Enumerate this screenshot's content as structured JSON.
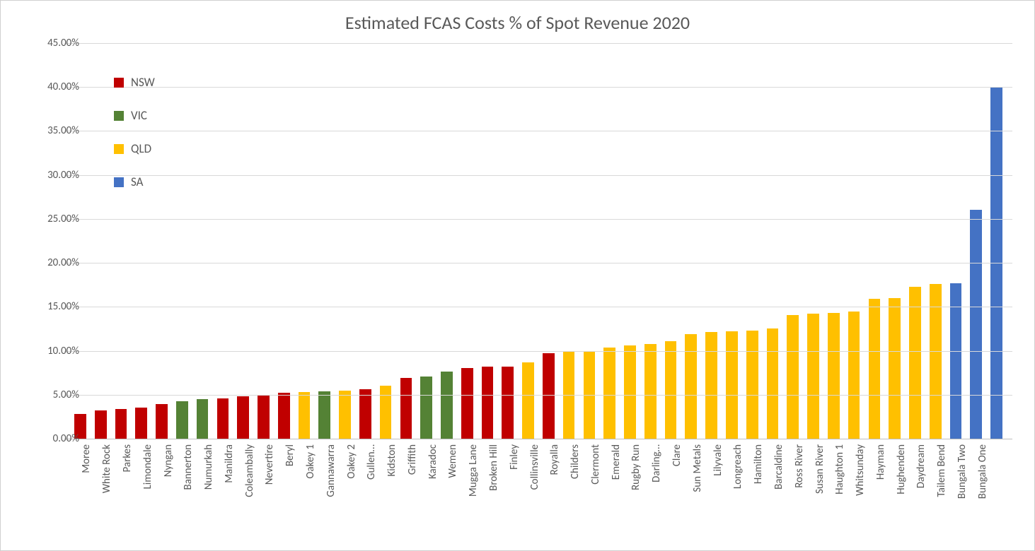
{
  "chart": {
    "type": "bar",
    "title": "Estimated FCAS Costs % of Spot Revenue 2020",
    "title_fontsize": 26,
    "title_color": "#595959",
    "background_color": "#ffffff",
    "border_color": "#d0d0d0",
    "grid_color": "#d9d9d9",
    "axis_line_color": "#bfbfbf",
    "label_fontsize": 15,
    "label_color": "#595959",
    "y_axis": {
      "min": 0,
      "max": 45,
      "tick_step": 5,
      "ticks": [
        "0.00%",
        "5.00%",
        "10.00%",
        "15.00%",
        "20.00%",
        "25.00%",
        "30.00%",
        "35.00%",
        "40.00%",
        "45.00%"
      ],
      "format": "percent_2dp"
    },
    "bar_width_ratio": 0.58,
    "legend": {
      "position": "top-left-inside",
      "fontsize": 17,
      "items": [
        {
          "label": "NSW",
          "color": "#c00000"
        },
        {
          "label": "VIC",
          "color": "#548235"
        },
        {
          "label": "QLD",
          "color": "#ffc000"
        },
        {
          "label": "SA",
          "color": "#4472c4"
        }
      ]
    },
    "series_colors": {
      "NSW": "#c00000",
      "VIC": "#548235",
      "QLD": "#ffc000",
      "SA": "#4472c4"
    },
    "data": [
      {
        "label": "Moree",
        "value": 2.8,
        "series": "NSW"
      },
      {
        "label": "White Rock",
        "value": 3.2,
        "series": "NSW"
      },
      {
        "label": "Parkes",
        "value": 3.4,
        "series": "NSW"
      },
      {
        "label": "Limondale",
        "value": 3.5,
        "series": "NSW"
      },
      {
        "label": "Nyngan",
        "value": 3.9,
        "series": "NSW"
      },
      {
        "label": "Bannerton",
        "value": 4.3,
        "series": "VIC"
      },
      {
        "label": "Numurkah",
        "value": 4.5,
        "series": "VIC"
      },
      {
        "label": "Manildra",
        "value": 4.6,
        "series": "NSW"
      },
      {
        "label": "Coleambally",
        "value": 4.8,
        "series": "NSW"
      },
      {
        "label": "Nevertire",
        "value": 4.9,
        "series": "NSW"
      },
      {
        "label": "Beryl",
        "value": 5.2,
        "series": "NSW"
      },
      {
        "label": "Oakey 1",
        "value": 5.3,
        "series": "QLD"
      },
      {
        "label": "Gannawarra",
        "value": 5.4,
        "series": "VIC"
      },
      {
        "label": "Oakey 2",
        "value": 5.5,
        "series": "QLD"
      },
      {
        "label": "Gullen…",
        "value": 5.6,
        "series": "NSW"
      },
      {
        "label": "Kidston",
        "value": 6.0,
        "series": "QLD"
      },
      {
        "label": "Griffith",
        "value": 6.9,
        "series": "NSW"
      },
      {
        "label": "Karadoc",
        "value": 7.1,
        "series": "VIC"
      },
      {
        "label": "Wemen",
        "value": 7.6,
        "series": "VIC"
      },
      {
        "label": "Mugga Lane",
        "value": 8.0,
        "series": "NSW"
      },
      {
        "label": "Broken Hill",
        "value": 8.2,
        "series": "NSW"
      },
      {
        "label": "Finley",
        "value": 8.2,
        "series": "NSW"
      },
      {
        "label": "Collinsville",
        "value": 8.7,
        "series": "QLD"
      },
      {
        "label": "Royalla",
        "value": 9.7,
        "series": "NSW"
      },
      {
        "label": "Childers",
        "value": 9.9,
        "series": "QLD"
      },
      {
        "label": "Clermont",
        "value": 10.0,
        "series": "QLD"
      },
      {
        "label": "Emerald",
        "value": 10.4,
        "series": "QLD"
      },
      {
        "label": "Rugby Run",
        "value": 10.6,
        "series": "QLD"
      },
      {
        "label": "Darling…",
        "value": 10.8,
        "series": "QLD"
      },
      {
        "label": "Clare",
        "value": 11.1,
        "series": "QLD"
      },
      {
        "label": "Sun Metals",
        "value": 11.9,
        "series": "QLD"
      },
      {
        "label": "Lilyvale",
        "value": 12.1,
        "series": "QLD"
      },
      {
        "label": "Longreach",
        "value": 12.2,
        "series": "QLD"
      },
      {
        "label": "Hamilton",
        "value": 12.3,
        "series": "QLD"
      },
      {
        "label": "Barcaldine",
        "value": 12.5,
        "series": "QLD"
      },
      {
        "label": "Ross River",
        "value": 14.1,
        "series": "QLD"
      },
      {
        "label": "Susan River",
        "value": 14.2,
        "series": "QLD"
      },
      {
        "label": "Haughton 1",
        "value": 14.3,
        "series": "QLD"
      },
      {
        "label": "Whitsunday",
        "value": 14.5,
        "series": "QLD"
      },
      {
        "label": "Hayman",
        "value": 15.9,
        "series": "QLD"
      },
      {
        "label": "Hughenden",
        "value": 16.0,
        "series": "QLD"
      },
      {
        "label": "Daydream",
        "value": 17.3,
        "series": "QLD"
      },
      {
        "label": "Tailem Bend",
        "value": 17.6,
        "series": "QLD"
      },
      {
        "label": "Bungala Two",
        "value": 17.7,
        "series": "SA"
      },
      {
        "label": "Bungala One",
        "value": 26.0,
        "series": "SA"
      },
      {
        "label": "",
        "value": 40.0,
        "series": "SA"
      }
    ]
  }
}
